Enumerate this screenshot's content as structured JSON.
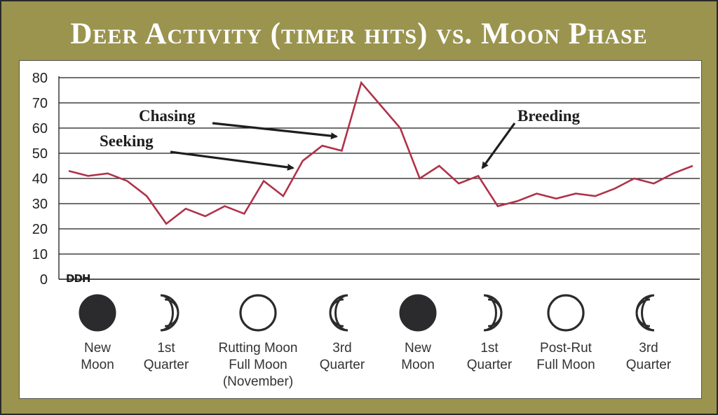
{
  "title": "Deer Activity (timer hits) vs. Moon Phase",
  "logo_text": "DDH",
  "chart_data": {
    "type": "line",
    "title": "Deer Activity (timer hits) vs. Moon Phase",
    "xlabel": "",
    "ylabel": "",
    "ylim": [
      0,
      80
    ],
    "yticks": [
      0,
      10,
      20,
      30,
      40,
      50,
      60,
      70,
      80
    ],
    "grid": true,
    "line_color": "#b0324a",
    "series": [
      {
        "values": [
          43,
          41,
          42,
          39,
          33,
          22,
          28,
          25,
          29,
          26,
          39,
          33,
          47,
          53,
          51,
          78,
          69,
          60,
          40,
          45,
          38,
          41,
          29,
          31,
          34,
          32,
          34,
          33,
          36,
          40,
          38,
          42,
          45
        ]
      }
    ],
    "annotations": [
      {
        "text": "Chasing",
        "point_index": 14
      },
      {
        "text": "Seeking",
        "point_index": 12
      },
      {
        "text": "Breeding",
        "point_index": 21
      }
    ],
    "phases": [
      {
        "icon": "new-moon-icon",
        "lines": [
          "New",
          "Moon"
        ]
      },
      {
        "icon": "first-quarter-icon",
        "lines": [
          "1st",
          "Quarter"
        ]
      },
      {
        "icon": "full-moon-icon",
        "lines": [
          "Rutting Moon",
          "Full Moon",
          "(November)"
        ]
      },
      {
        "icon": "third-quarter-icon",
        "lines": [
          "3rd",
          "Quarter"
        ]
      },
      {
        "icon": "new-moon-icon",
        "lines": [
          "New",
          "Moon"
        ]
      },
      {
        "icon": "first-quarter-icon",
        "lines": [
          "1st",
          "Quarter"
        ]
      },
      {
        "icon": "full-moon-icon",
        "lines": [
          "Post-Rut",
          "Full Moon"
        ]
      },
      {
        "icon": "third-quarter-icon",
        "lines": [
          "3rd",
          "Quarter"
        ]
      }
    ]
  }
}
